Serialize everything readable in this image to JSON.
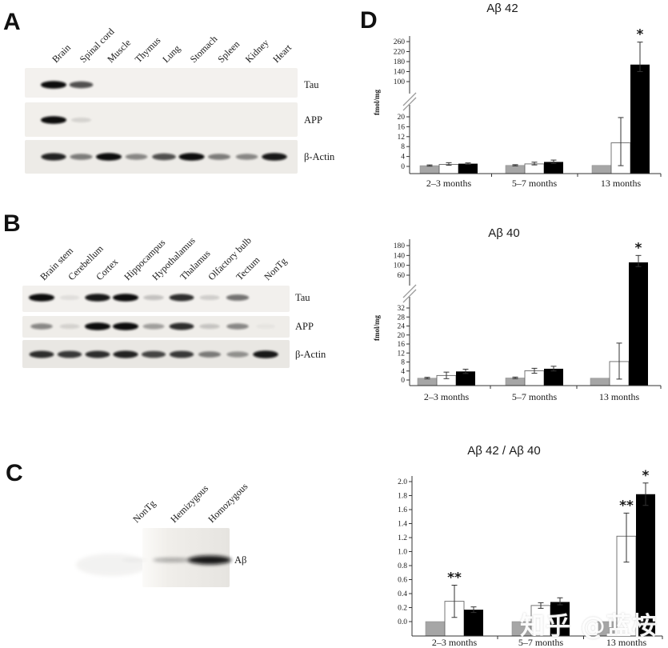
{
  "figure": {
    "panel_letters": {
      "A": "A",
      "B": "B",
      "C": "C",
      "D": "D"
    },
    "watermark": "知乎 @蓝桉"
  },
  "blots": {
    "A": {
      "lane_labels": [
        "Brain",
        "Spinal cord",
        "Muscle",
        "Thymus",
        "Lung",
        "Stomach",
        "Spleen",
        "Kidney",
        "Heart"
      ],
      "rows": [
        {
          "label": "Tau",
          "bands": [
            1,
            0.7,
            0,
            0,
            0,
            0,
            0,
            0,
            0
          ]
        },
        {
          "label": "APP",
          "bands": [
            1,
            0.12,
            0,
            0,
            0,
            0,
            0,
            0,
            0
          ]
        },
        {
          "label": "β-Actin",
          "bands": [
            0.9,
            0.5,
            1,
            0.45,
            0.7,
            1,
            0.5,
            0.45,
            0.95
          ]
        }
      ]
    },
    "B": {
      "lane_labels": [
        "Brain stem",
        "Cerebellum",
        "Cortex",
        "Hippocampus",
        "Hypothalamus",
        "Thalamus",
        "Olfactory bulb",
        "Tectum",
        "NonTg"
      ],
      "rows": [
        {
          "label": "Tau",
          "bands": [
            1,
            0.08,
            0.95,
            1,
            0.2,
            0.85,
            0.15,
            0.55,
            0
          ]
        },
        {
          "label": "APP",
          "bands": [
            0.45,
            0.12,
            1,
            1,
            0.35,
            0.85,
            0.18,
            0.45,
            0.04
          ]
        },
        {
          "label": "β-Actin",
          "bands": [
            0.85,
            0.8,
            0.85,
            0.9,
            0.75,
            0.8,
            0.5,
            0.4,
            0.95
          ]
        }
      ]
    },
    "C": {
      "lane_labels": [
        "NonTg",
        "Hemizygous",
        "Homozygous"
      ],
      "rows": [
        {
          "label": "Aβ",
          "bands": [
            0.04,
            0.35,
            0.95
          ]
        }
      ]
    }
  },
  "chart_data": [
    {
      "type": "bar",
      "title": "Aβ 42",
      "ylabel": "fmol/mg",
      "categories": [
        "2–3 months",
        "5–7 months",
        "13 months"
      ],
      "axis_break": true,
      "lower_range": [
        0,
        20
      ],
      "upper_range": [
        100,
        260
      ],
      "lower_ticks": [
        0,
        4,
        8,
        12,
        16,
        20
      ],
      "upper_ticks": [
        100,
        140,
        180,
        220,
        260
      ],
      "tick_decimals": 0,
      "series": [
        {
          "name": "gray",
          "color": "#a6a6a6",
          "values": [
            0.3,
            0.4,
            0.4
          ],
          "errors": [
            [
              0.1,
              0.6
            ],
            [
              0.2,
              0.7
            ],
            null
          ]
        },
        {
          "name": "white",
          "color": "#ffffff",
          "values": [
            0.8,
            1.0,
            9.5
          ],
          "errors": [
            [
              0.45,
              1.5
            ],
            [
              0.6,
              1.7
            ],
            [
              0.3,
              19.7
            ]
          ]
        },
        {
          "name": "black",
          "color": "#000000",
          "values": [
            1.1,
            1.8,
            168
          ],
          "errors": [
            [
              0.85,
              1.4
            ],
            [
              1.2,
              2.55
            ],
            [
              140,
              258
            ]
          ]
        }
      ],
      "annotations": [
        {
          "category": "13 months",
          "series": "black",
          "text": "*"
        }
      ]
    },
    {
      "type": "bar",
      "title": "Aβ 40",
      "ylabel": "fmol/mg",
      "categories": [
        "2–3 months",
        "5–7 months",
        "13 months"
      ],
      "axis_break": true,
      "lower_range": [
        0,
        32
      ],
      "upper_range": [
        60,
        180
      ],
      "lower_ticks": [
        0,
        4,
        8,
        12,
        16,
        20,
        24,
        28,
        32
      ],
      "upper_ticks": [
        60,
        100,
        140,
        180
      ],
      "tick_decimals": 0,
      "series": [
        {
          "name": "gray",
          "color": "#a6a6a6",
          "values": [
            0.8,
            0.9,
            0.8
          ],
          "errors": [
            [
              0.5,
              1.2
            ],
            [
              0.6,
              1.3
            ],
            null
          ]
        },
        {
          "name": "white",
          "color": "#ffffff",
          "values": [
            2.0,
            4.1,
            8.2
          ],
          "errors": [
            [
              0.6,
              3.5
            ],
            [
              3.0,
              5.2
            ],
            [
              0.4,
              16.4
            ]
          ]
        },
        {
          "name": "black",
          "color": "#000000",
          "values": [
            3.8,
            5.0,
            112
          ],
          "errors": [
            [
              2.9,
              4.8
            ],
            [
              4.0,
              6.1
            ],
            [
              95,
              140
            ]
          ]
        }
      ],
      "annotations": [
        {
          "category": "13 months",
          "series": "black",
          "text": "*"
        }
      ]
    },
    {
      "type": "bar",
      "title": "Aβ 42 / Aβ 40",
      "ylabel": "",
      "categories": [
        "2–3 months",
        "5–7 months",
        "13 months"
      ],
      "axis_break": false,
      "lower_range": [
        0,
        2.0
      ],
      "lower_ticks": [
        0.0,
        0.2,
        0.4,
        0.6,
        0.8,
        1.0,
        1.2,
        1.4,
        1.6,
        1.8,
        2.0
      ],
      "upper_ticks": [],
      "tick_decimals": 1,
      "series": [
        {
          "name": "gray",
          "color": "#a6a6a6",
          "values": [
            0.0,
            0.0,
            0.0
          ],
          "errors": [
            null,
            null,
            null
          ]
        },
        {
          "name": "white",
          "color": "#ffffff",
          "values": [
            0.29,
            0.23,
            1.22
          ],
          "errors": [
            [
              0.06,
              0.52
            ],
            [
              0.19,
              0.27
            ],
            [
              0.85,
              1.55
            ]
          ]
        },
        {
          "name": "black",
          "color": "#000000",
          "values": [
            0.17,
            0.28,
            1.82
          ],
          "errors": [
            [
              0.13,
              0.21
            ],
            [
              0.24,
              0.34
            ],
            [
              1.66,
              1.98
            ]
          ]
        }
      ],
      "annotations": [
        {
          "category": "2–3 months",
          "series": "white",
          "text": "**"
        },
        {
          "category": "13 months",
          "series": "white",
          "text": "**"
        },
        {
          "category": "13 months",
          "series": "black",
          "text": "*"
        }
      ]
    }
  ]
}
